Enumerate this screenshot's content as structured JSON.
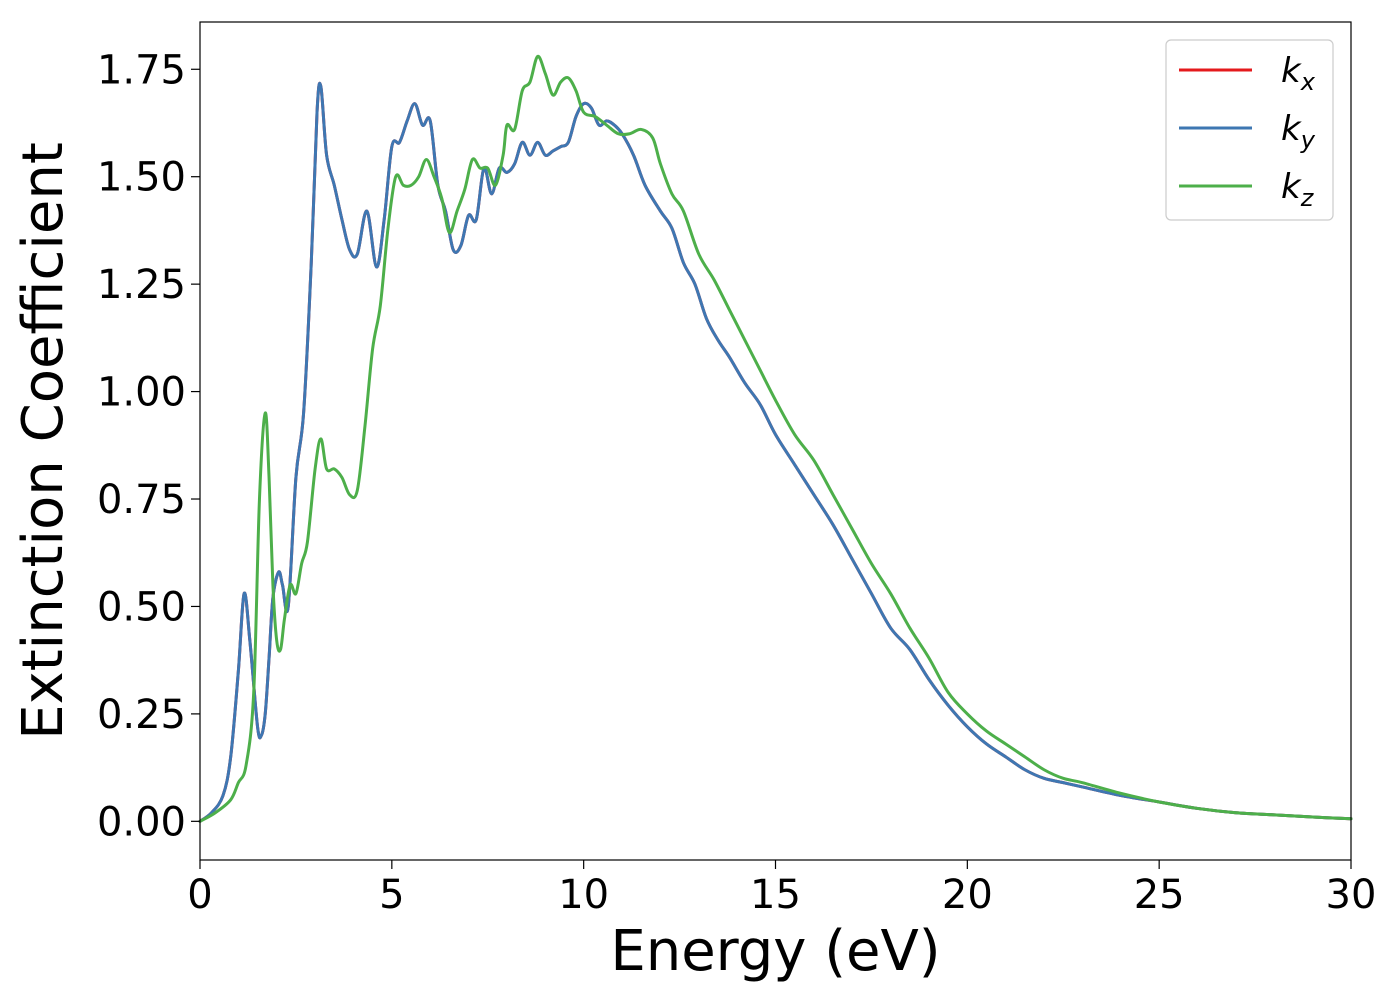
{
  "chart_data": {
    "type": "line",
    "title": "",
    "xlabel": "Energy (eV)",
    "ylabel": "Extinction Coefficient",
    "xlim": [
      0,
      30
    ],
    "ylim": [
      -0.09,
      1.86
    ],
    "xticks": [
      0,
      5,
      10,
      15,
      20,
      25,
      30
    ],
    "xtick_labels": [
      "0",
      "5",
      "10",
      "15",
      "20",
      "25",
      "30"
    ],
    "yticks": [
      0.0,
      0.25,
      0.5,
      0.75,
      1.0,
      1.25,
      1.5,
      1.75
    ],
    "ytick_labels": [
      "0.00",
      "0.25",
      "0.50",
      "0.75",
      "1.00",
      "1.25",
      "1.50",
      "1.75"
    ],
    "grid": false,
    "legend_position": "top-right",
    "series": [
      {
        "name": "k",
        "subscript": "x",
        "color": "#e41a1c",
        "x": [
          0,
          0.3,
          0.6,
          0.8,
          1.0,
          1.15,
          1.3,
          1.5,
          1.6,
          1.7,
          1.8,
          1.9,
          2.05,
          2.15,
          2.3,
          2.5,
          2.7,
          2.9,
          3.05,
          3.15,
          3.3,
          3.5,
          3.7,
          3.9,
          4.1,
          4.35,
          4.6,
          4.8,
          5.0,
          5.2,
          5.4,
          5.6,
          5.8,
          6.0,
          6.2,
          6.4,
          6.6,
          6.8,
          7.0,
          7.2,
          7.4,
          7.6,
          7.8,
          8.0,
          8.2,
          8.4,
          8.6,
          8.8,
          9.0,
          9.2,
          9.4,
          9.6,
          9.8,
          10.0,
          10.2,
          10.4,
          10.6,
          10.8,
          11.0,
          11.3,
          11.6,
          12.0,
          12.3,
          12.6,
          12.9,
          13.2,
          13.5,
          13.8,
          14.2,
          14.6,
          15.0,
          15.5,
          16.0,
          16.5,
          17.0,
          17.5,
          18.0,
          18.5,
          19.0,
          19.5,
          20.0,
          20.5,
          21.0,
          21.5,
          22.0,
          22.5,
          23.0,
          24.0,
          25.0,
          26.0,
          27.0,
          28.0,
          29.0,
          30.0
        ],
        "values": [
          0.0,
          0.02,
          0.06,
          0.15,
          0.35,
          0.53,
          0.42,
          0.22,
          0.2,
          0.25,
          0.38,
          0.52,
          0.58,
          0.55,
          0.5,
          0.8,
          0.95,
          1.3,
          1.65,
          1.71,
          1.55,
          1.48,
          1.4,
          1.33,
          1.32,
          1.42,
          1.29,
          1.4,
          1.57,
          1.58,
          1.63,
          1.67,
          1.62,
          1.63,
          1.48,
          1.42,
          1.33,
          1.34,
          1.41,
          1.4,
          1.52,
          1.46,
          1.52,
          1.51,
          1.53,
          1.58,
          1.55,
          1.58,
          1.55,
          1.56,
          1.57,
          1.58,
          1.64,
          1.67,
          1.66,
          1.62,
          1.63,
          1.62,
          1.6,
          1.55,
          1.48,
          1.42,
          1.38,
          1.3,
          1.25,
          1.17,
          1.12,
          1.08,
          1.02,
          0.97,
          0.9,
          0.83,
          0.76,
          0.69,
          0.61,
          0.53,
          0.45,
          0.4,
          0.33,
          0.27,
          0.22,
          0.18,
          0.15,
          0.12,
          0.1,
          0.09,
          0.08,
          0.06,
          0.045,
          0.03,
          0.02,
          0.015,
          0.01,
          0.006
        ]
      },
      {
        "name": "k",
        "subscript": "y",
        "color": "#3e77b2",
        "x": [
          0,
          0.3,
          0.6,
          0.8,
          1.0,
          1.15,
          1.3,
          1.5,
          1.6,
          1.7,
          1.8,
          1.9,
          2.05,
          2.15,
          2.3,
          2.5,
          2.7,
          2.9,
          3.05,
          3.15,
          3.3,
          3.5,
          3.7,
          3.9,
          4.1,
          4.35,
          4.6,
          4.8,
          5.0,
          5.2,
          5.4,
          5.6,
          5.8,
          6.0,
          6.2,
          6.4,
          6.6,
          6.8,
          7.0,
          7.2,
          7.4,
          7.6,
          7.8,
          8.0,
          8.2,
          8.4,
          8.6,
          8.8,
          9.0,
          9.2,
          9.4,
          9.6,
          9.8,
          10.0,
          10.2,
          10.4,
          10.6,
          10.8,
          11.0,
          11.3,
          11.6,
          12.0,
          12.3,
          12.6,
          12.9,
          13.2,
          13.5,
          13.8,
          14.2,
          14.6,
          15.0,
          15.5,
          16.0,
          16.5,
          17.0,
          17.5,
          18.0,
          18.5,
          19.0,
          19.5,
          20.0,
          20.5,
          21.0,
          21.5,
          22.0,
          22.5,
          23.0,
          24.0,
          25.0,
          26.0,
          27.0,
          28.0,
          29.0,
          30.0
        ],
        "values": [
          0.0,
          0.02,
          0.06,
          0.15,
          0.35,
          0.53,
          0.42,
          0.22,
          0.2,
          0.25,
          0.38,
          0.52,
          0.58,
          0.55,
          0.5,
          0.8,
          0.95,
          1.3,
          1.65,
          1.71,
          1.55,
          1.48,
          1.4,
          1.33,
          1.32,
          1.42,
          1.29,
          1.4,
          1.57,
          1.58,
          1.63,
          1.67,
          1.62,
          1.63,
          1.48,
          1.42,
          1.33,
          1.34,
          1.41,
          1.4,
          1.52,
          1.46,
          1.52,
          1.51,
          1.53,
          1.58,
          1.55,
          1.58,
          1.55,
          1.56,
          1.57,
          1.58,
          1.64,
          1.67,
          1.66,
          1.62,
          1.63,
          1.62,
          1.6,
          1.55,
          1.48,
          1.42,
          1.38,
          1.3,
          1.25,
          1.17,
          1.12,
          1.08,
          1.02,
          0.97,
          0.9,
          0.83,
          0.76,
          0.69,
          0.61,
          0.53,
          0.45,
          0.4,
          0.33,
          0.27,
          0.22,
          0.18,
          0.15,
          0.12,
          0.1,
          0.09,
          0.08,
          0.06,
          0.045,
          0.03,
          0.02,
          0.015,
          0.01,
          0.006
        ]
      },
      {
        "name": "k",
        "subscript": "z",
        "color": "#4daf4a",
        "x": [
          0,
          0.4,
          0.8,
          1.0,
          1.2,
          1.4,
          1.55,
          1.7,
          1.8,
          1.9,
          2.0,
          2.1,
          2.2,
          2.35,
          2.5,
          2.65,
          2.8,
          3.0,
          3.15,
          3.3,
          3.5,
          3.7,
          3.9,
          4.1,
          4.3,
          4.5,
          4.7,
          4.9,
          5.1,
          5.3,
          5.5,
          5.7,
          5.9,
          6.1,
          6.3,
          6.5,
          6.7,
          6.9,
          7.1,
          7.3,
          7.5,
          7.7,
          7.9,
          8.0,
          8.2,
          8.4,
          8.6,
          8.8,
          9.0,
          9.2,
          9.4,
          9.6,
          9.8,
          10.0,
          10.3,
          10.6,
          10.9,
          11.2,
          11.5,
          11.8,
          12.0,
          12.3,
          12.6,
          13.0,
          13.4,
          13.8,
          14.2,
          14.6,
          15.0,
          15.5,
          16.0,
          16.5,
          17.0,
          17.5,
          18.0,
          18.5,
          19.0,
          19.5,
          20.0,
          20.5,
          21.0,
          21.5,
          22.0,
          22.5,
          23.0,
          24.0,
          25.0,
          26.0,
          27.0,
          28.0,
          29.0,
          30.0
        ],
        "values": [
          0.0,
          0.02,
          0.05,
          0.09,
          0.13,
          0.3,
          0.75,
          0.95,
          0.8,
          0.55,
          0.42,
          0.4,
          0.47,
          0.55,
          0.53,
          0.6,
          0.65,
          0.82,
          0.89,
          0.82,
          0.82,
          0.8,
          0.76,
          0.77,
          0.92,
          1.1,
          1.2,
          1.38,
          1.5,
          1.48,
          1.48,
          1.5,
          1.54,
          1.5,
          1.45,
          1.37,
          1.42,
          1.47,
          1.54,
          1.52,
          1.52,
          1.48,
          1.55,
          1.62,
          1.61,
          1.7,
          1.72,
          1.78,
          1.74,
          1.69,
          1.72,
          1.73,
          1.7,
          1.65,
          1.64,
          1.62,
          1.6,
          1.6,
          1.61,
          1.59,
          1.53,
          1.46,
          1.42,
          1.32,
          1.26,
          1.19,
          1.12,
          1.05,
          0.98,
          0.9,
          0.84,
          0.76,
          0.68,
          0.6,
          0.53,
          0.45,
          0.38,
          0.3,
          0.25,
          0.21,
          0.18,
          0.15,
          0.12,
          0.1,
          0.09,
          0.065,
          0.045,
          0.03,
          0.02,
          0.015,
          0.01,
          0.006
        ]
      }
    ]
  }
}
